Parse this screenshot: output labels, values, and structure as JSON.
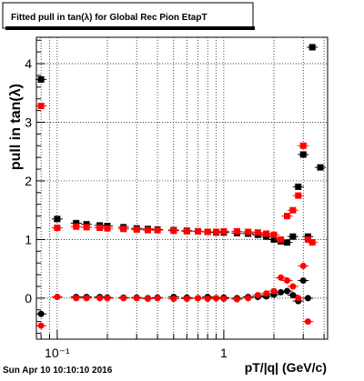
{
  "title": "Fitted pull in tan(λ) for Global Rec Pion EtapT",
  "timestamp": "Sun Apr 10 10:10:10 2016",
  "chart_data": {
    "type": "scatter",
    "title": "Fitted pull in tan(λ) for Global Rec Pion EtapT",
    "xlabel": "pT/|q| (GeV/c)",
    "ylabel": "pull in tan(λ)",
    "xscale": "log",
    "xlim": [
      0.075,
      4.2
    ],
    "ylim": [
      -0.7,
      4.45
    ],
    "grid": true,
    "x_ticks": [
      {
        "value": 0.1,
        "label": "10⁻¹"
      },
      {
        "value": 1,
        "label": "1"
      }
    ],
    "y_ticks": [
      {
        "value": 0,
        "label": "0"
      },
      {
        "value": 1,
        "label": "1"
      },
      {
        "value": 2,
        "label": "2"
      },
      {
        "value": 3,
        "label": "3"
      },
      {
        "value": 4,
        "label": "4"
      }
    ],
    "series": [
      {
        "color": "#000000",
        "role": "width",
        "points": [
          [
            0.08,
            3.73
          ],
          [
            0.1,
            1.35
          ],
          [
            0.13,
            1.28
          ],
          [
            0.15,
            1.26
          ],
          [
            0.18,
            1.24
          ],
          [
            0.2,
            1.23
          ],
          [
            0.25,
            1.21
          ],
          [
            0.3,
            1.19
          ],
          [
            0.35,
            1.18
          ],
          [
            0.4,
            1.17
          ],
          [
            0.5,
            1.16
          ],
          [
            0.6,
            1.15
          ],
          [
            0.7,
            1.14
          ],
          [
            0.8,
            1.13
          ],
          [
            0.9,
            1.12
          ],
          [
            1.0,
            1.12
          ],
          [
            1.2,
            1.11
          ],
          [
            1.4,
            1.1
          ],
          [
            1.6,
            1.08
          ],
          [
            1.8,
            1.05
          ],
          [
            2.0,
            1.0
          ],
          [
            2.2,
            0.97
          ],
          [
            2.4,
            0.95
          ],
          [
            2.6,
            1.05
          ],
          [
            2.8,
            1.9
          ],
          [
            3.0,
            2.45
          ],
          [
            3.2,
            1.05
          ],
          [
            3.4,
            4.28
          ],
          [
            3.8,
            2.23
          ]
        ]
      },
      {
        "color": "#ff0000",
        "role": "width",
        "points": [
          [
            0.08,
            3.28
          ],
          [
            0.1,
            1.2
          ],
          [
            0.13,
            1.22
          ],
          [
            0.15,
            1.21
          ],
          [
            0.18,
            1.2
          ],
          [
            0.2,
            1.19
          ],
          [
            0.25,
            1.18
          ],
          [
            0.3,
            1.17
          ],
          [
            0.35,
            1.16
          ],
          [
            0.4,
            1.16
          ],
          [
            0.5,
            1.15
          ],
          [
            0.6,
            1.14
          ],
          [
            0.7,
            1.14
          ],
          [
            0.8,
            1.13
          ],
          [
            0.9,
            1.13
          ],
          [
            1.0,
            1.14
          ],
          [
            1.2,
            1.14
          ],
          [
            1.4,
            1.13
          ],
          [
            1.6,
            1.12
          ],
          [
            1.8,
            1.1
          ],
          [
            2.0,
            1.08
          ],
          [
            2.2,
            1.0
          ],
          [
            2.4,
            1.4
          ],
          [
            2.6,
            1.5
          ],
          [
            2.8,
            1.75
          ],
          [
            3.0,
            2.6
          ],
          [
            3.2,
            1.0
          ],
          [
            3.4,
            0.95
          ]
        ]
      },
      {
        "color": "#000000",
        "role": "mean",
        "points": [
          [
            0.08,
            -0.27
          ],
          [
            0.1,
            0.02
          ],
          [
            0.13,
            0.02
          ],
          [
            0.15,
            0.02
          ],
          [
            0.18,
            0.02
          ],
          [
            0.2,
            0.01
          ],
          [
            0.25,
            0.01
          ],
          [
            0.3,
            0.01
          ],
          [
            0.35,
            0.0
          ],
          [
            0.4,
            0.01
          ],
          [
            0.5,
            0.02
          ],
          [
            0.6,
            0.01
          ],
          [
            0.7,
            0.0
          ],
          [
            0.8,
            0.02
          ],
          [
            0.9,
            0.0
          ],
          [
            1.0,
            0.01
          ],
          [
            1.2,
            0.0
          ],
          [
            1.4,
            0.02
          ],
          [
            1.6,
            0.02
          ],
          [
            1.8,
            0.03
          ],
          [
            2.0,
            0.06
          ],
          [
            2.2,
            0.1
          ],
          [
            2.4,
            0.12
          ],
          [
            2.6,
            0.05
          ],
          [
            2.8,
            -0.05
          ],
          [
            3.0,
            0.3
          ],
          [
            3.2,
            0.0
          ]
        ]
      },
      {
        "color": "#ff0000",
        "role": "mean",
        "points": [
          [
            0.08,
            -0.47
          ],
          [
            0.1,
            0.02
          ],
          [
            0.13,
            0.0
          ],
          [
            0.15,
            0.0
          ],
          [
            0.18,
            0.0
          ],
          [
            0.2,
            0.0
          ],
          [
            0.25,
            0.0
          ],
          [
            0.3,
            0.0
          ],
          [
            0.35,
            -0.01
          ],
          [
            0.4,
            0.0
          ],
          [
            0.5,
            -0.01
          ],
          [
            0.6,
            -0.01
          ],
          [
            0.7,
            0.0
          ],
          [
            0.8,
            -0.01
          ],
          [
            0.9,
            0.0
          ],
          [
            1.0,
            -0.01
          ],
          [
            1.2,
            -0.02
          ],
          [
            1.4,
            0.0
          ],
          [
            1.6,
            0.05
          ],
          [
            1.8,
            0.08
          ],
          [
            2.0,
            0.12
          ],
          [
            2.2,
            0.35
          ],
          [
            2.4,
            0.3
          ],
          [
            2.6,
            0.2
          ],
          [
            2.8,
            0.0
          ],
          [
            3.0,
            0.55
          ],
          [
            3.2,
            -0.4
          ]
        ]
      }
    ]
  }
}
